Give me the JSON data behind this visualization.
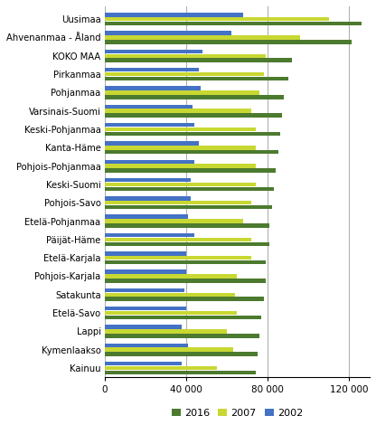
{
  "categories": [
    "Uusimaa",
    "Ahvenanmaa - Åland",
    "KOKO MAA",
    "Pirkanmaa",
    "Pohjanmaa",
    "Varsinais-Suomi",
    "Keski-Pohjanmaa",
    "Kanta-Häme",
    "Pohjois-Pohjanmaa",
    "Keski-Suomi",
    "Pohjois-Savo",
    "Etelä-Pohjanmaa",
    "Päijät-Häme",
    "Etelä-Karjala",
    "Pohjois-Karjala",
    "Satakunta",
    "Etelä-Savo",
    "Lappi",
    "Kymenlaakso",
    "Kainuu"
  ],
  "values_2016": [
    126000,
    121000,
    92000,
    90000,
    88000,
    87000,
    86000,
    85000,
    84000,
    83000,
    82000,
    81000,
    81000,
    79000,
    79000,
    78000,
    77000,
    76000,
    75000,
    74000
  ],
  "values_2007": [
    110000,
    96000,
    79000,
    78000,
    76000,
    72000,
    74000,
    74000,
    74000,
    74000,
    72000,
    68000,
    72000,
    72000,
    65000,
    64000,
    65000,
    60000,
    63000,
    55000
  ],
  "values_2002": [
    68000,
    62000,
    48000,
    46000,
    47000,
    43000,
    44000,
    46000,
    44000,
    42000,
    42000,
    41000,
    44000,
    40000,
    40000,
    39000,
    40000,
    38000,
    41000,
    38000
  ],
  "color_2016": "#4c7a2e",
  "color_2007": "#c8d832",
  "color_2002": "#4472c4",
  "xlim": [
    0,
    130000
  ],
  "xticks": [
    0,
    40000,
    80000,
    120000
  ],
  "xticklabels": [
    "0",
    "40 000",
    "80 000",
    "120 000"
  ],
  "legend_labels": [
    "2016",
    "2007",
    "2002"
  ],
  "background_color": "#ffffff",
  "grid_color": "#b0b0b0"
}
